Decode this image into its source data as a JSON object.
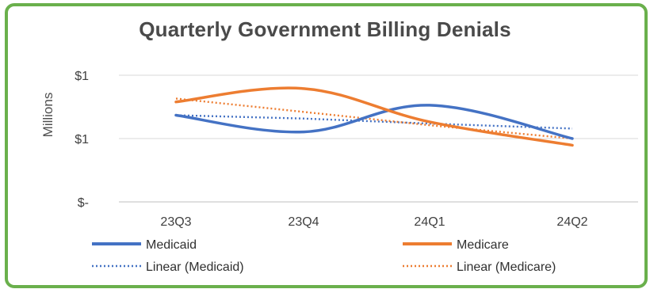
{
  "chart_data": {
    "type": "line",
    "title": "Quarterly Government Billing Denials",
    "ylabel": "Millions",
    "categories": [
      "23Q3",
      "23Q4",
      "24Q1",
      "24Q2"
    ],
    "y_ticks": [
      "$1",
      "$1",
      "$-"
    ],
    "series": [
      {
        "name": "Medicaid",
        "values": [
          0.98,
          0.93,
          1.01,
          0.91
        ],
        "color": "#4472c4",
        "style": "solid"
      },
      {
        "name": "Medicare",
        "values": [
          1.02,
          1.06,
          0.96,
          0.89
        ],
        "color": "#ed7d31",
        "style": "solid"
      }
    ],
    "trendlines": [
      {
        "name": "Linear (Medicaid)",
        "values": [
          0.98,
          0.97,
          0.955,
          0.94
        ],
        "color": "#4472c4",
        "style": "dotted"
      },
      {
        "name": "Linear (Medicare)",
        "values": [
          1.03,
          0.99,
          0.95,
          0.91
        ],
        "color": "#ed7d31",
        "style": "dotted"
      }
    ],
    "ylim": [
      0.72,
      1.1
    ],
    "grid": {
      "horizontal": true,
      "vertical": false
    },
    "legend_position": "bottom"
  }
}
